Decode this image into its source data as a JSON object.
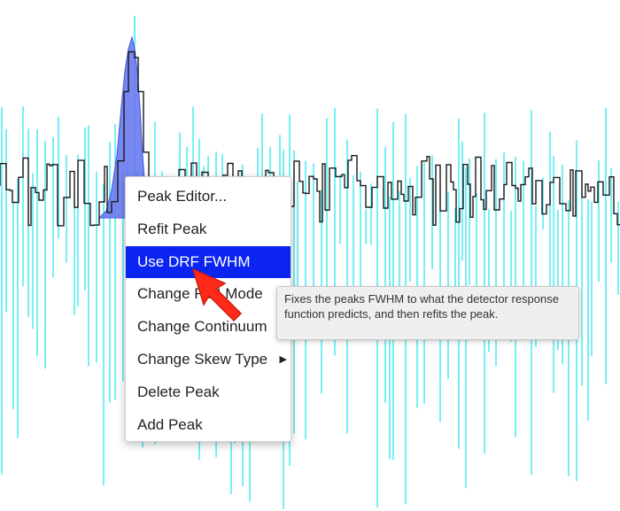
{
  "context_menu": {
    "items": [
      {
        "label": "Peak Editor...",
        "highlighted": false,
        "has_submenu": false
      },
      {
        "label": "Refit Peak",
        "highlighted": false,
        "has_submenu": false
      },
      {
        "label": "Use DRF FWHM",
        "highlighted": true,
        "has_submenu": false
      },
      {
        "label": "Change ROI Mode",
        "highlighted": false,
        "has_submenu": false
      },
      {
        "label": "Change Continuum",
        "highlighted": false,
        "has_submenu": true
      },
      {
        "label": "Change Skew Type",
        "highlighted": false,
        "has_submenu": true
      },
      {
        "label": "Delete Peak",
        "highlighted": false,
        "has_submenu": false
      },
      {
        "label": "Add Peak",
        "highlighted": false,
        "has_submenu": false
      }
    ],
    "submenu_glyph": "▶"
  },
  "tooltip": {
    "text": "Fixes the peaks FWHM to what the detector response function predicts, and then refits the peak."
  },
  "colors": {
    "background_lines": "#2ee6f0",
    "spectrum_line": "#1a1a1a",
    "peak_fill": "#6b7cf0",
    "menu_highlight": "#0b24f2",
    "annotation_arrow": "#ff2a1a"
  },
  "icons": {
    "annotation": "red-arrow-pointer-icon"
  }
}
